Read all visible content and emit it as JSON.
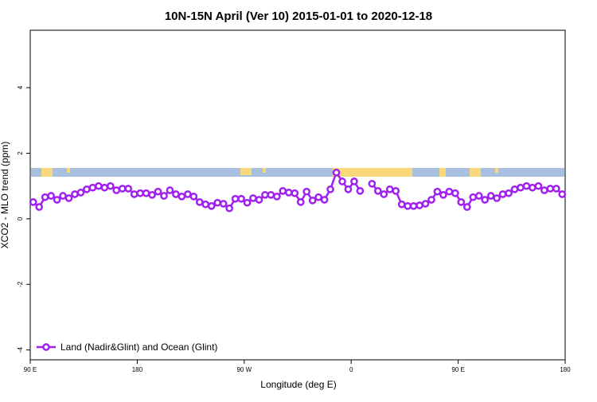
{
  "chart_data": {
    "type": "line",
    "title": "10N-15N April (Ver 10)   2015-01-01 to 2020-12-18",
    "x_label": "Longitude (deg E)",
    "y_label": "XCO2 - MLO trend (ppm)",
    "x": [
      92.5,
      97.5,
      102.5,
      107.5,
      112.5,
      117.5,
      122.5,
      127.5,
      132.5,
      137.5,
      142.5,
      147.5,
      152.5,
      157.5,
      162.5,
      167.5,
      172.5,
      177.5,
      182.5,
      187.5,
      192.5,
      197.5,
      202.5,
      207.5,
      212.5,
      217.5,
      222.5,
      227.5,
      232.5,
      237.5,
      242.5,
      247.5,
      252.5,
      257.5,
      262.5,
      267.5,
      272.5,
      277.5,
      282.5,
      287.5,
      292.5,
      297.5,
      302.5,
      307.5,
      312.5,
      317.5,
      322.5,
      327.5,
      332.5,
      337.5,
      342.5,
      347.5,
      352.5,
      357.5,
      362.5,
      367.5,
      372.5,
      377.5,
      382.5,
      387.5,
      392.5,
      397.5,
      402.5,
      407.5,
      412.5,
      417.5,
      422.5,
      427.5,
      432.5,
      437.5,
      442.5,
      447.5,
      452.5,
      457.5,
      462.5,
      467.5,
      472.5,
      477.5,
      482.5,
      487.5,
      492.5,
      497.5,
      502.5,
      507.5,
      512.5,
      517.5,
      522.5,
      527.5,
      532.5,
      537.5
    ],
    "series": [
      {
        "name": "Land (Nadir&Glint) and Ocean (Glint)",
        "color": "#a020f0",
        "values": [
          0.51,
          0.36,
          0.66,
          0.7,
          0.58,
          0.7,
          0.63,
          0.75,
          0.8,
          0.9,
          0.95,
          1.0,
          0.95,
          1.0,
          0.87,
          0.92,
          0.92,
          0.75,
          0.78,
          0.78,
          0.73,
          0.83,
          0.7,
          0.87,
          0.75,
          0.68,
          0.75,
          0.68,
          0.51,
          0.44,
          0.39,
          0.49,
          0.46,
          0.32,
          0.61,
          0.61,
          0.49,
          0.63,
          0.58,
          0.73,
          0.73,
          0.68,
          0.85,
          0.8,
          0.78,
          0.51,
          0.83,
          0.56,
          0.66,
          0.58,
          0.9,
          1.41,
          1.14,
          0.9,
          1.14,
          0.85,
          null,
          1.07,
          0.85,
          0.75,
          0.9,
          0.85,
          0.44,
          0.39,
          0.39,
          0.41,
          0.46,
          0.58,
          0.83,
          0.73,
          0.83,
          0.78,
          0.51,
          0.36,
          0.66,
          0.7,
          0.58,
          0.7,
          0.63,
          0.75,
          0.78,
          0.9,
          0.95,
          1.0,
          0.95,
          1.0,
          0.87,
          0.92,
          0.92,
          0.75
        ]
      }
    ],
    "xlim": [
      90,
      540
    ],
    "xticks": [
      {
        "value": 90,
        "label": "90 E"
      },
      180,
      {
        "value": 270,
        "label": "90 W"
      },
      {
        "value": 360,
        "label": "0"
      },
      {
        "value": 450,
        "label": "90 E"
      },
      {
        "value": 540,
        "label": "180"
      }
    ],
    "ylim": [
      -4.3,
      5.75
    ],
    "yticks": [
      -4,
      -2,
      0,
      2,
      4
    ],
    "legend": "bottomleft"
  }
}
